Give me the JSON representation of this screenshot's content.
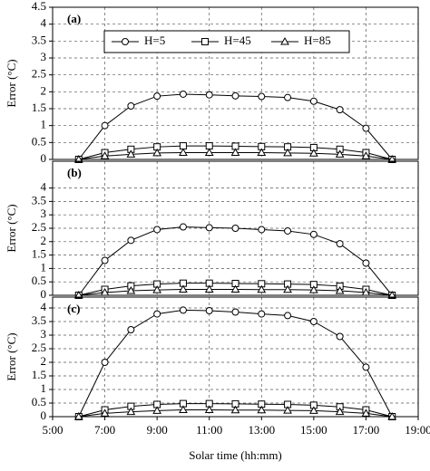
{
  "chart_data": [
    {
      "type": "line",
      "panel_label": "(a)",
      "y_label": "Error (°C)",
      "xlim": [
        5,
        19
      ],
      "ylim": [
        0,
        4.5
      ],
      "yticks": [
        0,
        0.5,
        1,
        1.5,
        2,
        2.5,
        3,
        3.5,
        4,
        4.5
      ],
      "grid": true,
      "legend": "top",
      "x": [
        6,
        7,
        8,
        9,
        10,
        11,
        12,
        13,
        14,
        15,
        16,
        17,
        18
      ],
      "series": [
        {
          "name": "H=5",
          "color": "#000000",
          "marker": "circle",
          "values": [
            0,
            1.0,
            1.58,
            1.87,
            1.93,
            1.91,
            1.88,
            1.86,
            1.83,
            1.72,
            1.47,
            0.92,
            0
          ]
        },
        {
          "name": "H=45",
          "color": "#000000",
          "marker": "square",
          "values": [
            0,
            0.2,
            0.3,
            0.37,
            0.4,
            0.4,
            0.39,
            0.38,
            0.37,
            0.35,
            0.3,
            0.2,
            0
          ]
        },
        {
          "name": "H=85",
          "color": "#000000",
          "marker": "triangle",
          "values": [
            0,
            0.1,
            0.15,
            0.19,
            0.2,
            0.2,
            0.2,
            0.2,
            0.19,
            0.18,
            0.15,
            0.1,
            0
          ]
        }
      ]
    },
    {
      "type": "line",
      "panel_label": "(b)",
      "y_label": "Error (°C)",
      "xlim": [
        5,
        19
      ],
      "ylim": [
        0,
        5
      ],
      "yticks": [
        0,
        0.5,
        1,
        1.5,
        2,
        2.5,
        3,
        3.5,
        4
      ],
      "grid": true,
      "x": [
        6,
        7,
        8,
        9,
        10,
        11,
        12,
        13,
        14,
        15,
        16,
        17,
        18
      ],
      "series": [
        {
          "color": "#000000",
          "marker": "circle",
          "values": [
            0,
            1.3,
            2.05,
            2.45,
            2.55,
            2.52,
            2.5,
            2.45,
            2.4,
            2.27,
            1.92,
            1.2,
            0
          ]
        },
        {
          "color": "#000000",
          "marker": "square",
          "values": [
            0,
            0.22,
            0.35,
            0.42,
            0.45,
            0.45,
            0.44,
            0.43,
            0.42,
            0.4,
            0.34,
            0.22,
            0
          ]
        },
        {
          "color": "#000000",
          "marker": "triangle",
          "values": [
            0,
            0.1,
            0.17,
            0.2,
            0.22,
            0.22,
            0.22,
            0.21,
            0.21,
            0.2,
            0.17,
            0.1,
            0
          ]
        }
      ]
    },
    {
      "type": "line",
      "panel_label": "(c)",
      "y_label": "Error (°C)",
      "x_label": "Solar time (hh:mm)",
      "xlim": [
        5,
        19
      ],
      "ylim": [
        0,
        4.4
      ],
      "yticks": [
        0,
        0.5,
        1,
        1.5,
        2,
        2.5,
        3,
        3.5,
        4
      ],
      "grid": true,
      "xticks": [
        {
          "value": 5,
          "label": "5:00"
        },
        {
          "value": 7,
          "label": "7:00"
        },
        {
          "value": 9,
          "label": "9:00"
        },
        {
          "value": 11,
          "label": "11:00"
        },
        {
          "value": 13,
          "label": "13:00"
        },
        {
          "value": 15,
          "label": "15:00"
        },
        {
          "value": 17,
          "label": "17:00"
        },
        {
          "value": 19,
          "label": "19:00"
        }
      ],
      "x": [
        6,
        7,
        8,
        9,
        10,
        11,
        12,
        13,
        14,
        15,
        16,
        17,
        18
      ],
      "series": [
        {
          "color": "#000000",
          "marker": "circle",
          "values": [
            0,
            2.0,
            3.2,
            3.78,
            3.92,
            3.9,
            3.85,
            3.78,
            3.72,
            3.5,
            2.95,
            1.82,
            0
          ]
        },
        {
          "color": "#000000",
          "marker": "square",
          "values": [
            0,
            0.25,
            0.38,
            0.45,
            0.48,
            0.48,
            0.47,
            0.46,
            0.45,
            0.42,
            0.36,
            0.25,
            0
          ]
        },
        {
          "color": "#000000",
          "marker": "triangle",
          "values": [
            0,
            0.12,
            0.18,
            0.22,
            0.25,
            0.25,
            0.24,
            0.24,
            0.23,
            0.22,
            0.18,
            0.12,
            0
          ]
        }
      ]
    }
  ]
}
